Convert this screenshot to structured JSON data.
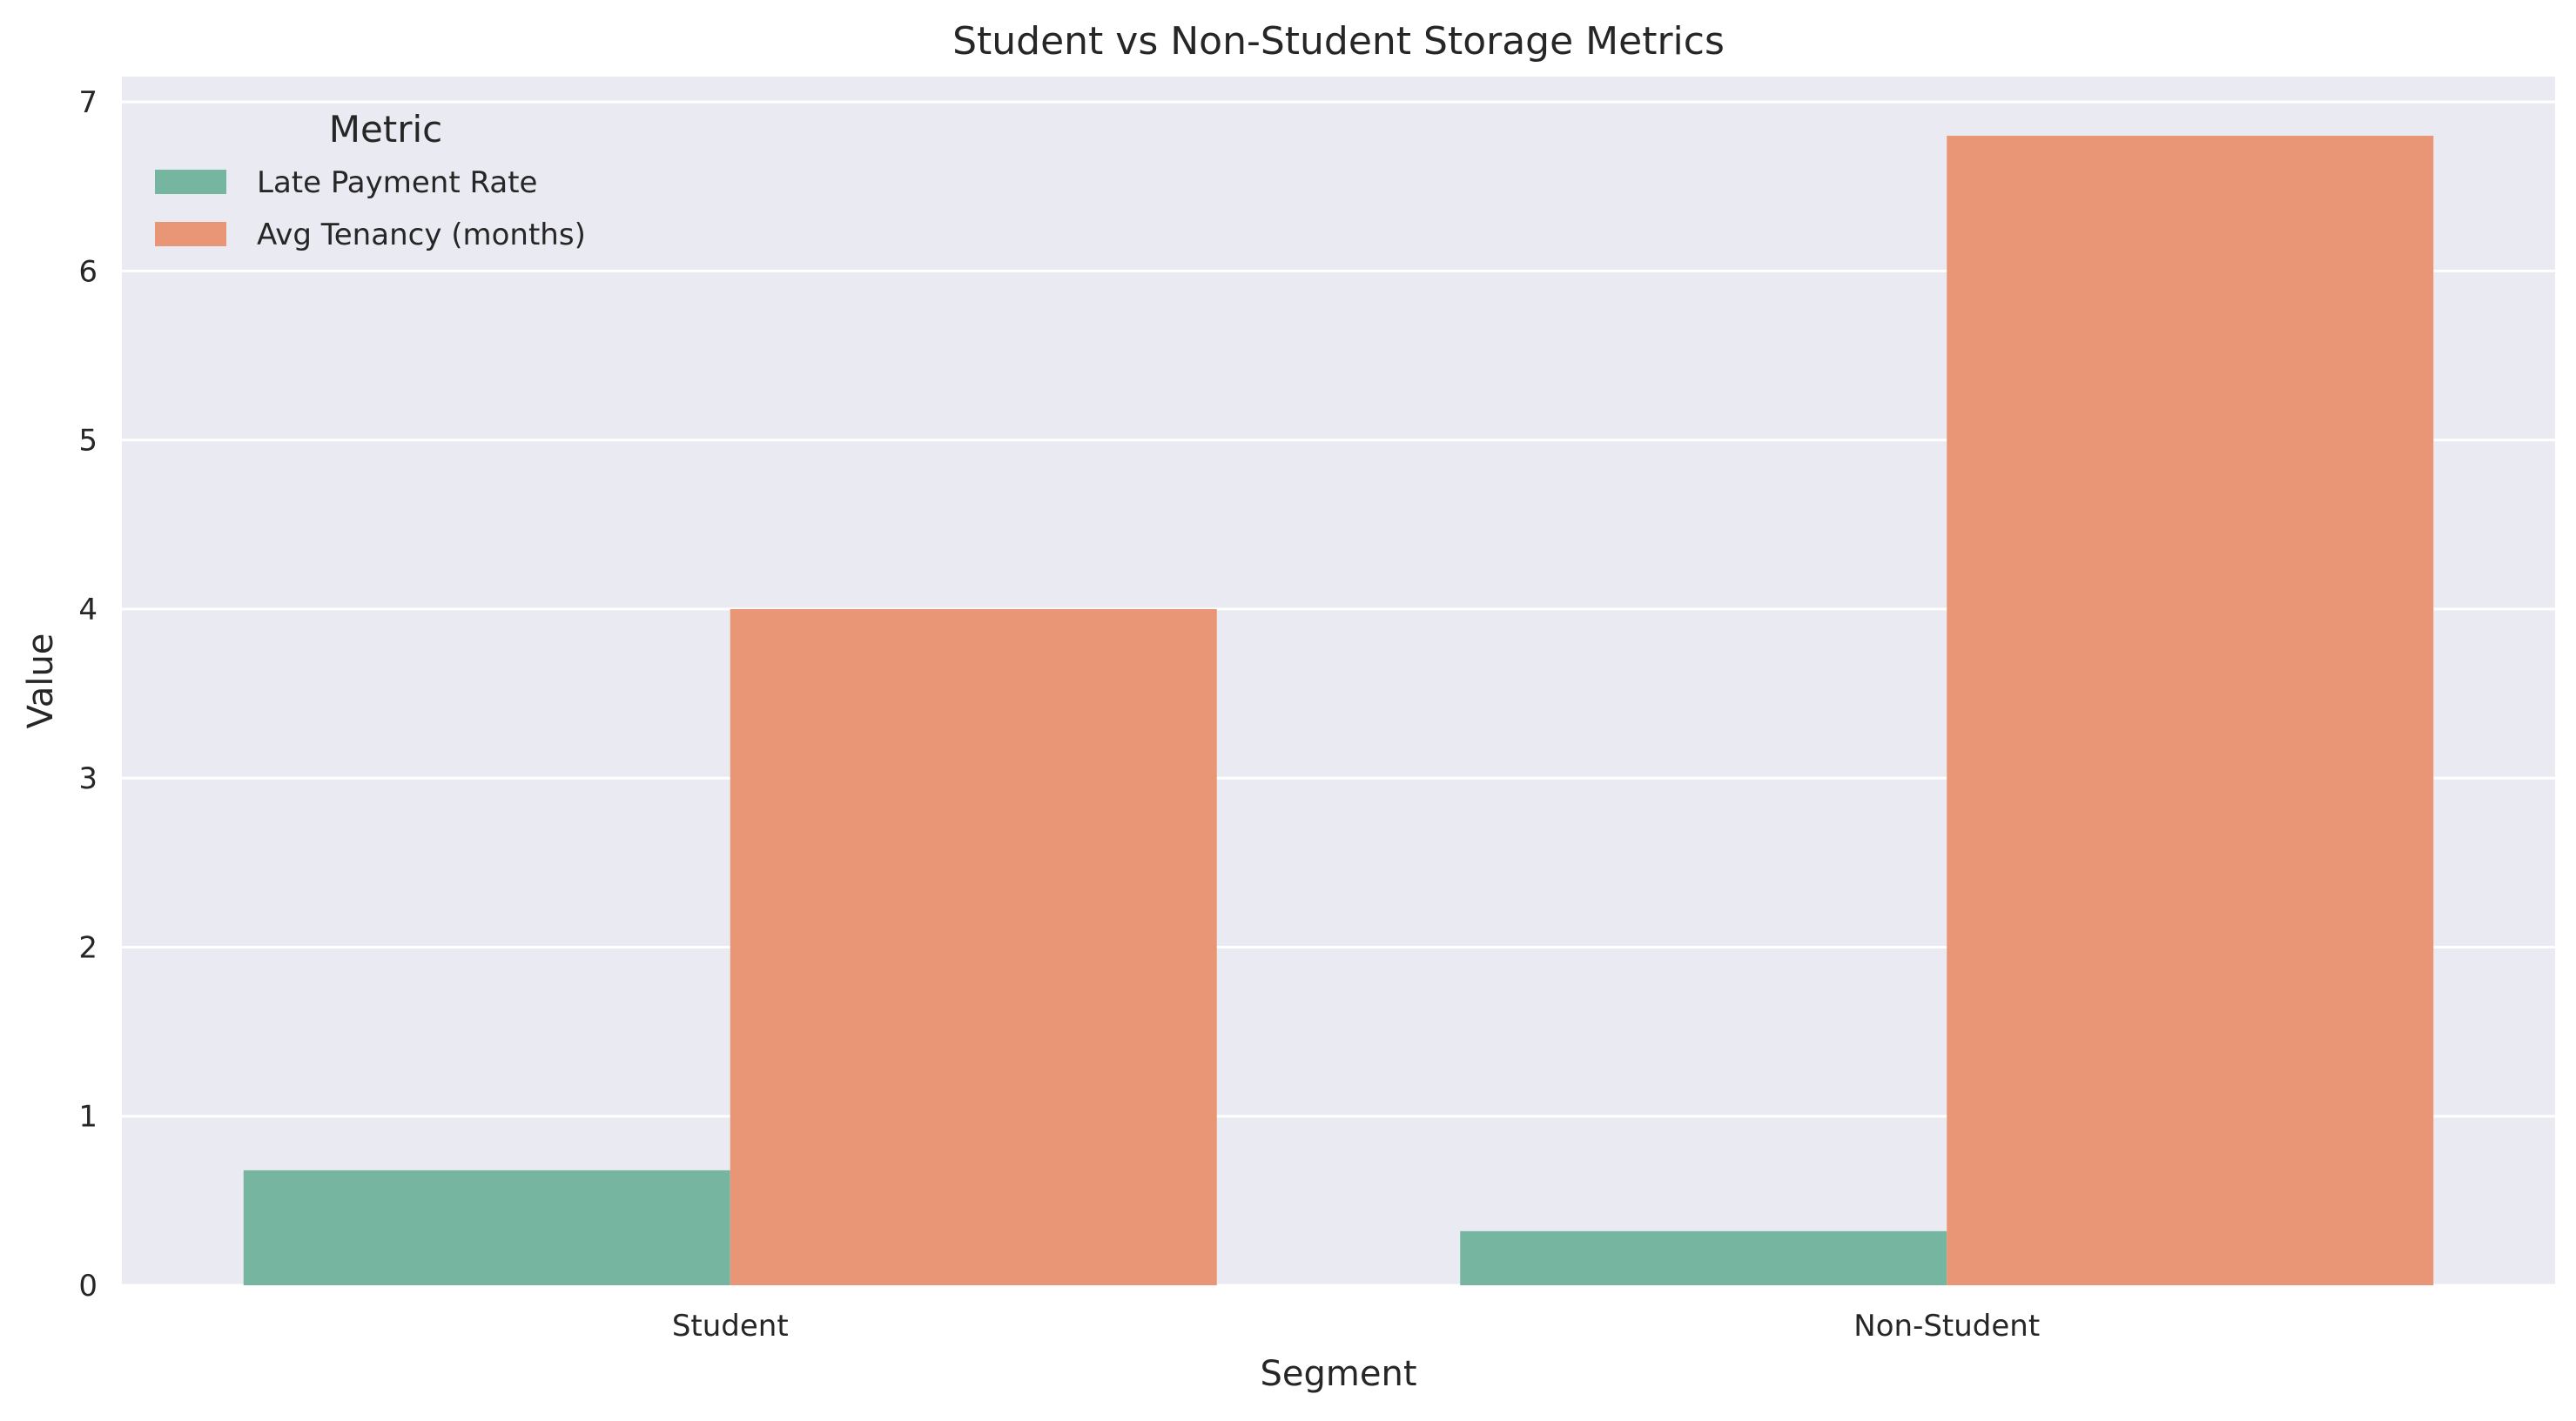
{
  "chart_data": {
    "type": "bar",
    "title": "Student vs Non-Student Storage Metrics",
    "xlabel": "Segment",
    "ylabel": "Value",
    "categories": [
      "Student",
      "Non-Student"
    ],
    "series": [
      {
        "name": "Late Payment Rate",
        "values": [
          0.68,
          0.32
        ],
        "color": "#76b5a0"
      },
      {
        "name": "Avg Tenancy (months)",
        "values": [
          4.0,
          6.8
        ],
        "color": "#e89675"
      }
    ],
    "ylim": [
      0,
      7.15
    ],
    "yticks": [
      "0",
      "1",
      "2",
      "3",
      "4",
      "5",
      "6",
      "7"
    ],
    "grid": true,
    "legend": {
      "title": "Metric",
      "placement": "top-left"
    },
    "background_color": "#eaeaf2",
    "grid_color": "#ffffff"
  }
}
